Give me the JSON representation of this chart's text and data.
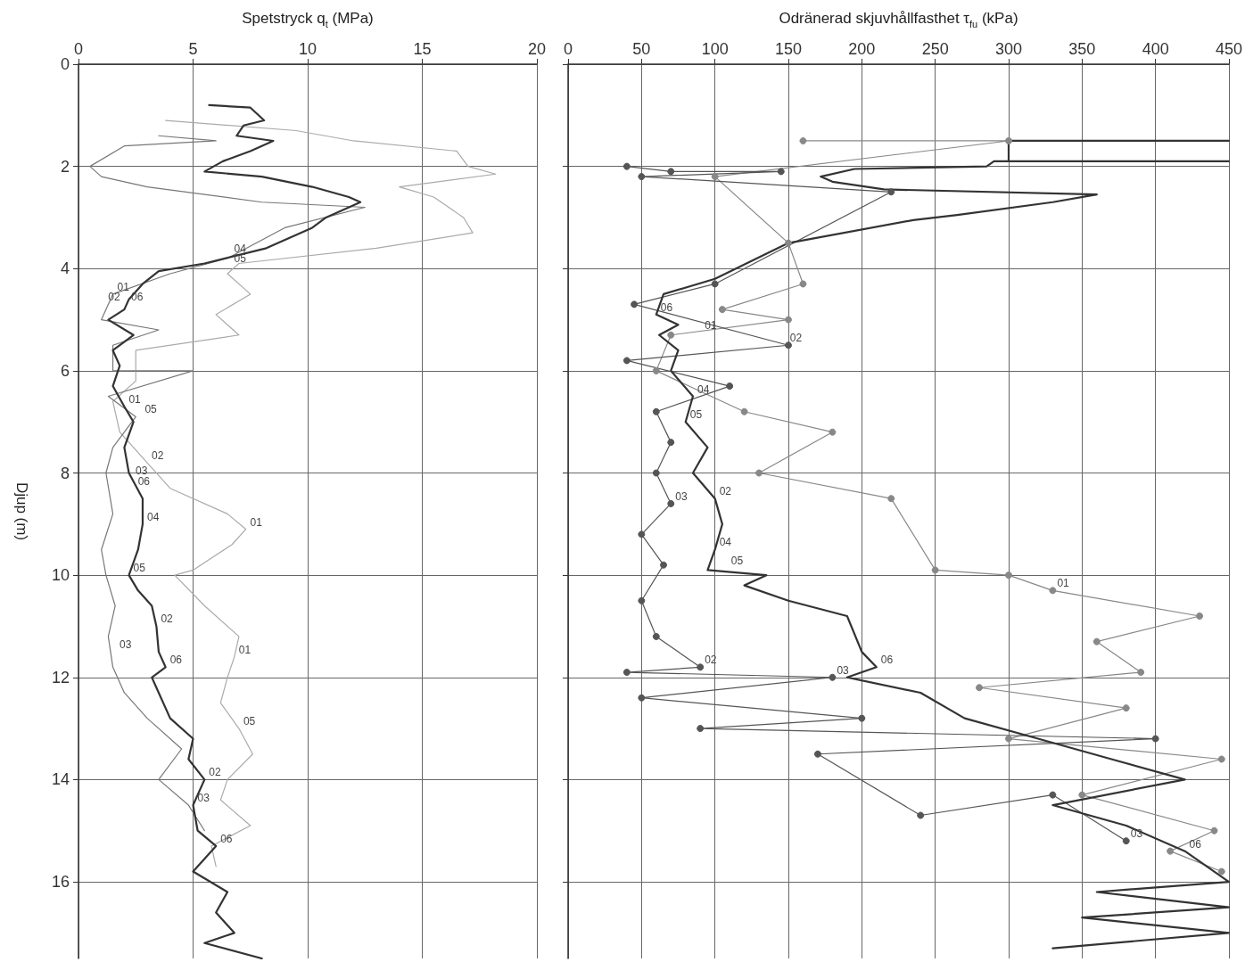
{
  "chart_data": [
    {
      "type": "line",
      "xlabel": "Spetstryck q$_{t}$ (MPa)",
      "ylabel": "Djup (m)",
      "xlim": [
        0,
        20
      ],
      "xticks": [
        0,
        5,
        10,
        15,
        20
      ],
      "ylim": [
        17.5,
        0
      ],
      "yticks": [
        0,
        2,
        4,
        6,
        8,
        10,
        12,
        14,
        16
      ],
      "grid": true,
      "marker": "none",
      "series": [
        {
          "color": "#aaaaaa",
          "x": [
            3.8,
            9.5,
            12,
            16.5,
            17,
            18.2,
            14,
            15.5,
            16.8,
            17.2,
            13,
            7,
            6.5,
            7.5,
            6,
            7,
            2.5,
            2.5,
            1.5,
            1.8,
            3,
            4.0,
            6.5,
            7.3,
            6.7,
            5.0,
            4.2,
            5.5,
            7.0,
            6.8,
            6.5,
            6.2,
            7.0,
            7.6,
            6.5,
            6.2,
            7.5,
            5.8,
            6.0
          ],
          "values": [
            1.1,
            1.3,
            1.5,
            1.7,
            2.0,
            2.15,
            2.4,
            2.6,
            3.0,
            3.3,
            3.6,
            3.9,
            4.1,
            4.5,
            4.9,
            5.3,
            5.6,
            6.2,
            6.6,
            7.2,
            7.8,
            8.3,
            8.8,
            9.1,
            9.4,
            9.9,
            10.0,
            10.6,
            11.2,
            11.6,
            12.0,
            12.5,
            13.0,
            13.5,
            14.0,
            14.4,
            14.9,
            15.3,
            15.7
          ]
        },
        {
          "color": "#777777",
          "x": [
            3.5,
            6.0,
            2.0,
            0.5,
            1.0,
            3.0,
            8,
            12.5,
            9.0,
            6.5,
            4.0,
            1.5,
            1.0,
            3.5,
            1.5,
            1.5,
            5.0,
            1.3,
            2.5,
            1.5,
            1.2,
            1.5,
            1.0,
            1.2,
            1.6,
            1.3,
            1.5,
            2.0,
            3.0,
            4.5,
            3.5,
            4.8,
            5.5
          ],
          "values": [
            1.4,
            1.5,
            1.6,
            2.0,
            2.2,
            2.4,
            2.7,
            2.8,
            3.2,
            3.8,
            4.1,
            4.5,
            5.0,
            5.2,
            5.5,
            6.0,
            6.0,
            6.5,
            6.9,
            7.5,
            8.0,
            8.8,
            9.5,
            10.0,
            10.6,
            11.2,
            11.8,
            12.3,
            12.8,
            13.4,
            14.0,
            14.5,
            15.0
          ]
        },
        {
          "color": "#333333",
          "x": [
            5.7,
            7.5,
            8.1,
            7.2,
            6.9,
            8.5,
            7.5,
            6.3,
            5.5,
            8.0,
            10.2,
            11.8,
            12.3,
            10.8,
            10.2,
            8.2,
            5.5,
            3.5,
            2.8,
            2.2,
            2.0,
            1.3,
            2.4,
            1.5,
            1.8,
            1.5,
            2.0,
            2.4,
            2.0,
            2.2,
            2.8,
            2.8,
            2.6,
            2.2,
            2.6,
            3.2,
            3.4,
            3.5,
            3.8,
            3.2,
            3.5,
            4.0,
            5.0,
            4.8,
            5.5,
            5.0,
            5.2,
            6.0,
            5.0,
            6.5,
            6.0,
            6.8,
            5.5,
            8.0
          ],
          "values": [
            0.8,
            0.85,
            1.1,
            1.2,
            1.4,
            1.5,
            1.7,
            1.9,
            2.1,
            2.2,
            2.4,
            2.6,
            2.7,
            3.0,
            3.2,
            3.6,
            3.9,
            4.05,
            4.3,
            4.6,
            4.8,
            5.0,
            5.3,
            5.6,
            5.9,
            6.3,
            6.7,
            7.0,
            7.5,
            8.0,
            8.5,
            9.0,
            9.5,
            10.0,
            10.3,
            10.6,
            11.0,
            11.5,
            11.8,
            12.0,
            12.3,
            12.8,
            13.2,
            13.6,
            14.0,
            14.5,
            15.0,
            15.3,
            15.8,
            16.2,
            16.6,
            17.0,
            17.2,
            17.5
          ]
        }
      ],
      "annotations": [
        {
          "text": "04",
          "x": 6.6,
          "y": 3.75
        },
        {
          "text": "05",
          "x": 6.6,
          "y": 3.95
        },
        {
          "text": "01",
          "x": 1.5,
          "y": 4.5
        },
        {
          "text": "02",
          "x": 1.1,
          "y": 4.7
        },
        {
          "text": "06",
          "x": 2.1,
          "y": 4.7
        },
        {
          "text": "01",
          "x": 2.0,
          "y": 6.7
        },
        {
          "text": "05",
          "x": 2.7,
          "y": 6.9
        },
        {
          "text": "02",
          "x": 3,
          "y": 7.8
        },
        {
          "text": "03",
          "x": 2.3,
          "y": 8.1
        },
        {
          "text": "06",
          "x": 2.4,
          "y": 8.3
        },
        {
          "text": "04",
          "x": 2.8,
          "y": 9.0
        },
        {
          "text": "01",
          "x": 7.3,
          "y": 9.1
        },
        {
          "text": "05",
          "x": 2.2,
          "y": 10.0
        },
        {
          "text": "02",
          "x": 3.4,
          "y": 11.0
        },
        {
          "text": "03",
          "x": 1.6,
          "y": 11.5
        },
        {
          "text": "06",
          "x": 3.8,
          "y": 11.8
        },
        {
          "text": "01",
          "x": 6.8,
          "y": 11.6
        },
        {
          "text": "05",
          "x": 7.0,
          "y": 13.0
        },
        {
          "text": "02",
          "x": 5.5,
          "y": 14.0
        },
        {
          "text": "03",
          "x": 5.0,
          "y": 14.5
        },
        {
          "text": "06",
          "x": 6.0,
          "y": 15.3
        }
      ]
    },
    {
      "type": "line",
      "xlabel": "Odränerad skjuvhållfasthet τ$_{fu}$ (kPa)",
      "xlim": [
        0,
        450
      ],
      "xticks": [
        0,
        50,
        100,
        150,
        200,
        250,
        300,
        350,
        400,
        450
      ],
      "ylim": [
        17.5,
        0
      ],
      "yticks": [
        0,
        2,
        4,
        6,
        8,
        10,
        12,
        14,
        16
      ],
      "grid": true,
      "tick_labels": "x",
      "marker": "circle",
      "series": [
        {
          "color": "#888888",
          "x": [
            160,
            300,
            100,
            150,
            160,
            105,
            150,
            70,
            60,
            120,
            180,
            130,
            220,
            250,
            300,
            330,
            430,
            360,
            390,
            280,
            380,
            300,
            445,
            350,
            440,
            410,
            445
          ],
          "values": [
            1.5,
            1.5,
            2.2,
            3.5,
            4.3,
            4.8,
            5.0,
            5.3,
            6.0,
            6.8,
            7.2,
            8.0,
            8.5,
            9.9,
            10.0,
            10.3,
            10.8,
            11.3,
            11.9,
            12.2,
            12.6,
            13.2,
            13.6,
            14.3,
            15.0,
            15.4,
            15.8
          ]
        },
        {
          "color": "#555555",
          "x": [
            40,
            70,
            145,
            50,
            220,
            100,
            45,
            150,
            40,
            110,
            60,
            70,
            60,
            70,
            50,
            65,
            50,
            60,
            90,
            40,
            180,
            50,
            200,
            90,
            400,
            170,
            240,
            330,
            380
          ],
          "values": [
            2.0,
            2.1,
            2.1,
            2.2,
            2.5,
            4.3,
            4.7,
            5.5,
            5.8,
            6.3,
            6.8,
            7.4,
            8.0,
            8.6,
            9.2,
            9.8,
            10.5,
            11.2,
            11.8,
            11.9,
            12.0,
            12.4,
            12.8,
            13.0,
            13.2,
            13.5,
            14.7,
            14.3,
            15.2
          ]
        },
        {
          "color": "#333333",
          "marker": "none",
          "x": [
            450,
            300,
            300,
            450,
            290,
            285,
            195,
            172,
            180,
            215,
            360,
            330,
            265,
            235,
            150,
            100,
            65,
            60,
            75,
            62,
            75,
            70,
            85,
            80,
            95,
            85,
            100,
            105,
            100,
            95,
            135,
            120,
            150,
            190,
            200,
            210,
            190,
            240,
            270,
            320,
            370,
            420,
            330,
            380,
            420,
            450,
            360,
            450,
            350,
            450,
            330
          ],
          "values": [
            1.5,
            1.5,
            1.9,
            1.9,
            1.9,
            2.0,
            2.05,
            2.2,
            2.3,
            2.45,
            2.55,
            2.7,
            2.95,
            3.05,
            3.5,
            4.2,
            4.5,
            4.9,
            5.1,
            5.3,
            5.6,
            6.0,
            6.5,
            7.0,
            7.5,
            8.0,
            8.5,
            9.0,
            9.5,
            9.9,
            10.0,
            10.2,
            10.5,
            10.8,
            11.5,
            11.8,
            12.0,
            12.3,
            12.8,
            13.2,
            13.6,
            14.0,
            14.5,
            14.9,
            15.4,
            16.0,
            16.2,
            16.5,
            16.7,
            17.0,
            17.3
          ]
        }
      ],
      "annotations": [
        {
          "text": "06",
          "x": 60,
          "y": 4.9
        },
        {
          "text": "01",
          "x": 90,
          "y": 5.25
        },
        {
          "text": "02",
          "x": 148,
          "y": 5.5
        },
        {
          "text": "04",
          "x": 85,
          "y": 6.5
        },
        {
          "text": "05",
          "x": 80,
          "y": 7.0
        },
        {
          "text": "03",
          "x": 70,
          "y": 8.6
        },
        {
          "text": "02",
          "x": 100,
          "y": 8.5
        },
        {
          "text": "04",
          "x": 100,
          "y": 9.5
        },
        {
          "text": "05",
          "x": 108,
          "y": 9.85
        },
        {
          "text": "01",
          "x": 330,
          "y": 10.3
        },
        {
          "text": "02",
          "x": 90,
          "y": 11.8
        },
        {
          "text": "06",
          "x": 210,
          "y": 11.8
        },
        {
          "text": "03",
          "x": 180,
          "y": 12.0
        },
        {
          "text": "03",
          "x": 380,
          "y": 15.2
        },
        {
          "text": "06",
          "x": 420,
          "y": 15.4
        }
      ]
    }
  ]
}
